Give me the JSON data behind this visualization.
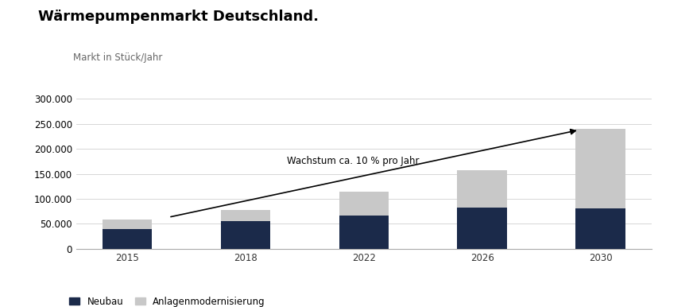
{
  "title": "Wärmepumpenmarkt Deutschland.",
  "ylabel": "Markt in Stück/Jahr",
  "categories": [
    "2015",
    "2018",
    "2022",
    "2026",
    "2030"
  ],
  "neubau": [
    40000,
    55000,
    67000,
    83000,
    80000
  ],
  "modernisierung": [
    18000,
    23000,
    47000,
    75000,
    160000
  ],
  "neubau_color": "#1b2a4a",
  "modernisierung_color": "#c8c8c8",
  "ylim": [
    0,
    320000
  ],
  "yticks": [
    0,
    50000,
    100000,
    150000,
    200000,
    250000,
    300000
  ],
  "legend_labels": [
    "Neubau",
    "Anlagenmodernisierung"
  ],
  "background_color": "#ffffff",
  "title_fontsize": 13,
  "tick_fontsize": 8.5,
  "label_fontsize": 8.5,
  "arrow_label": "Wachstum ca. 10 % pro Jahr"
}
